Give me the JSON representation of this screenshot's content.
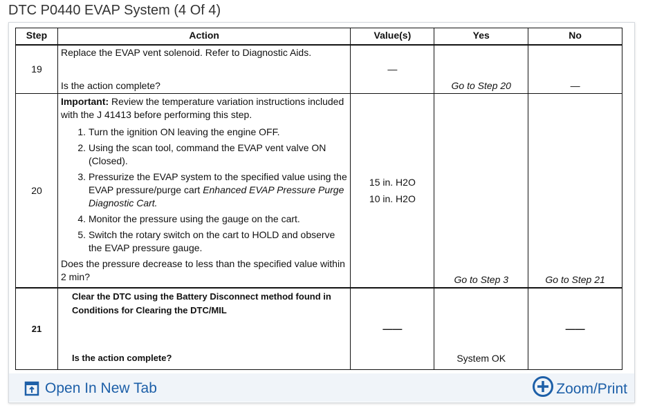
{
  "title": "DTC P0440 EVAP System (4 Of 4)",
  "headers": [
    "Step",
    "Action",
    "Value(s)",
    "Yes",
    "No"
  ],
  "row19": {
    "step": "19",
    "action1": "Replace the EVAP vent solenoid. Refer to Diagnostic Aids.",
    "action2": "Is the action complete?",
    "value": "—",
    "yes": "Go to Step 20",
    "no": "—"
  },
  "row20": {
    "step": "20",
    "important_label": "Important:",
    "important_text": " Review the temperature variation instructions included with the J 41413 before performing this step.",
    "steps": [
      "Turn the ignition ON leaving the engine OFF.",
      "Using the scan tool, command the EVAP vent valve ON (Closed).",
      "Pressurize the EVAP system to the specified value using the EVAP pressure/purge cart ",
      "Monitor the pressure using the gauge on the cart.",
      "Switch the rotary switch on the cart to HOLD and observe the EVAP pressure gauge."
    ],
    "step3_italic": "Enhanced EVAP Pressure Purge Diagnostic Cart.",
    "question": "Does the pressure decrease to less than the specified value within 2 min?",
    "value1": "15 in. H2O",
    "value2": "10 in. H2O",
    "yes": "Go to Step 3",
    "no": "Go to Step 21"
  },
  "row21": {
    "step": "21",
    "action1": "Clear the DTC using the Battery Disconnect  method found in Conditions for Clearing the DTC/MIL",
    "action2": "Is the action complete?",
    "value": "——",
    "yes": "System OK",
    "no": "——"
  },
  "footer": {
    "open_label": "Open In New Tab",
    "zoom_label": "Zoom/Print",
    "accent": "#1d5fa8"
  }
}
